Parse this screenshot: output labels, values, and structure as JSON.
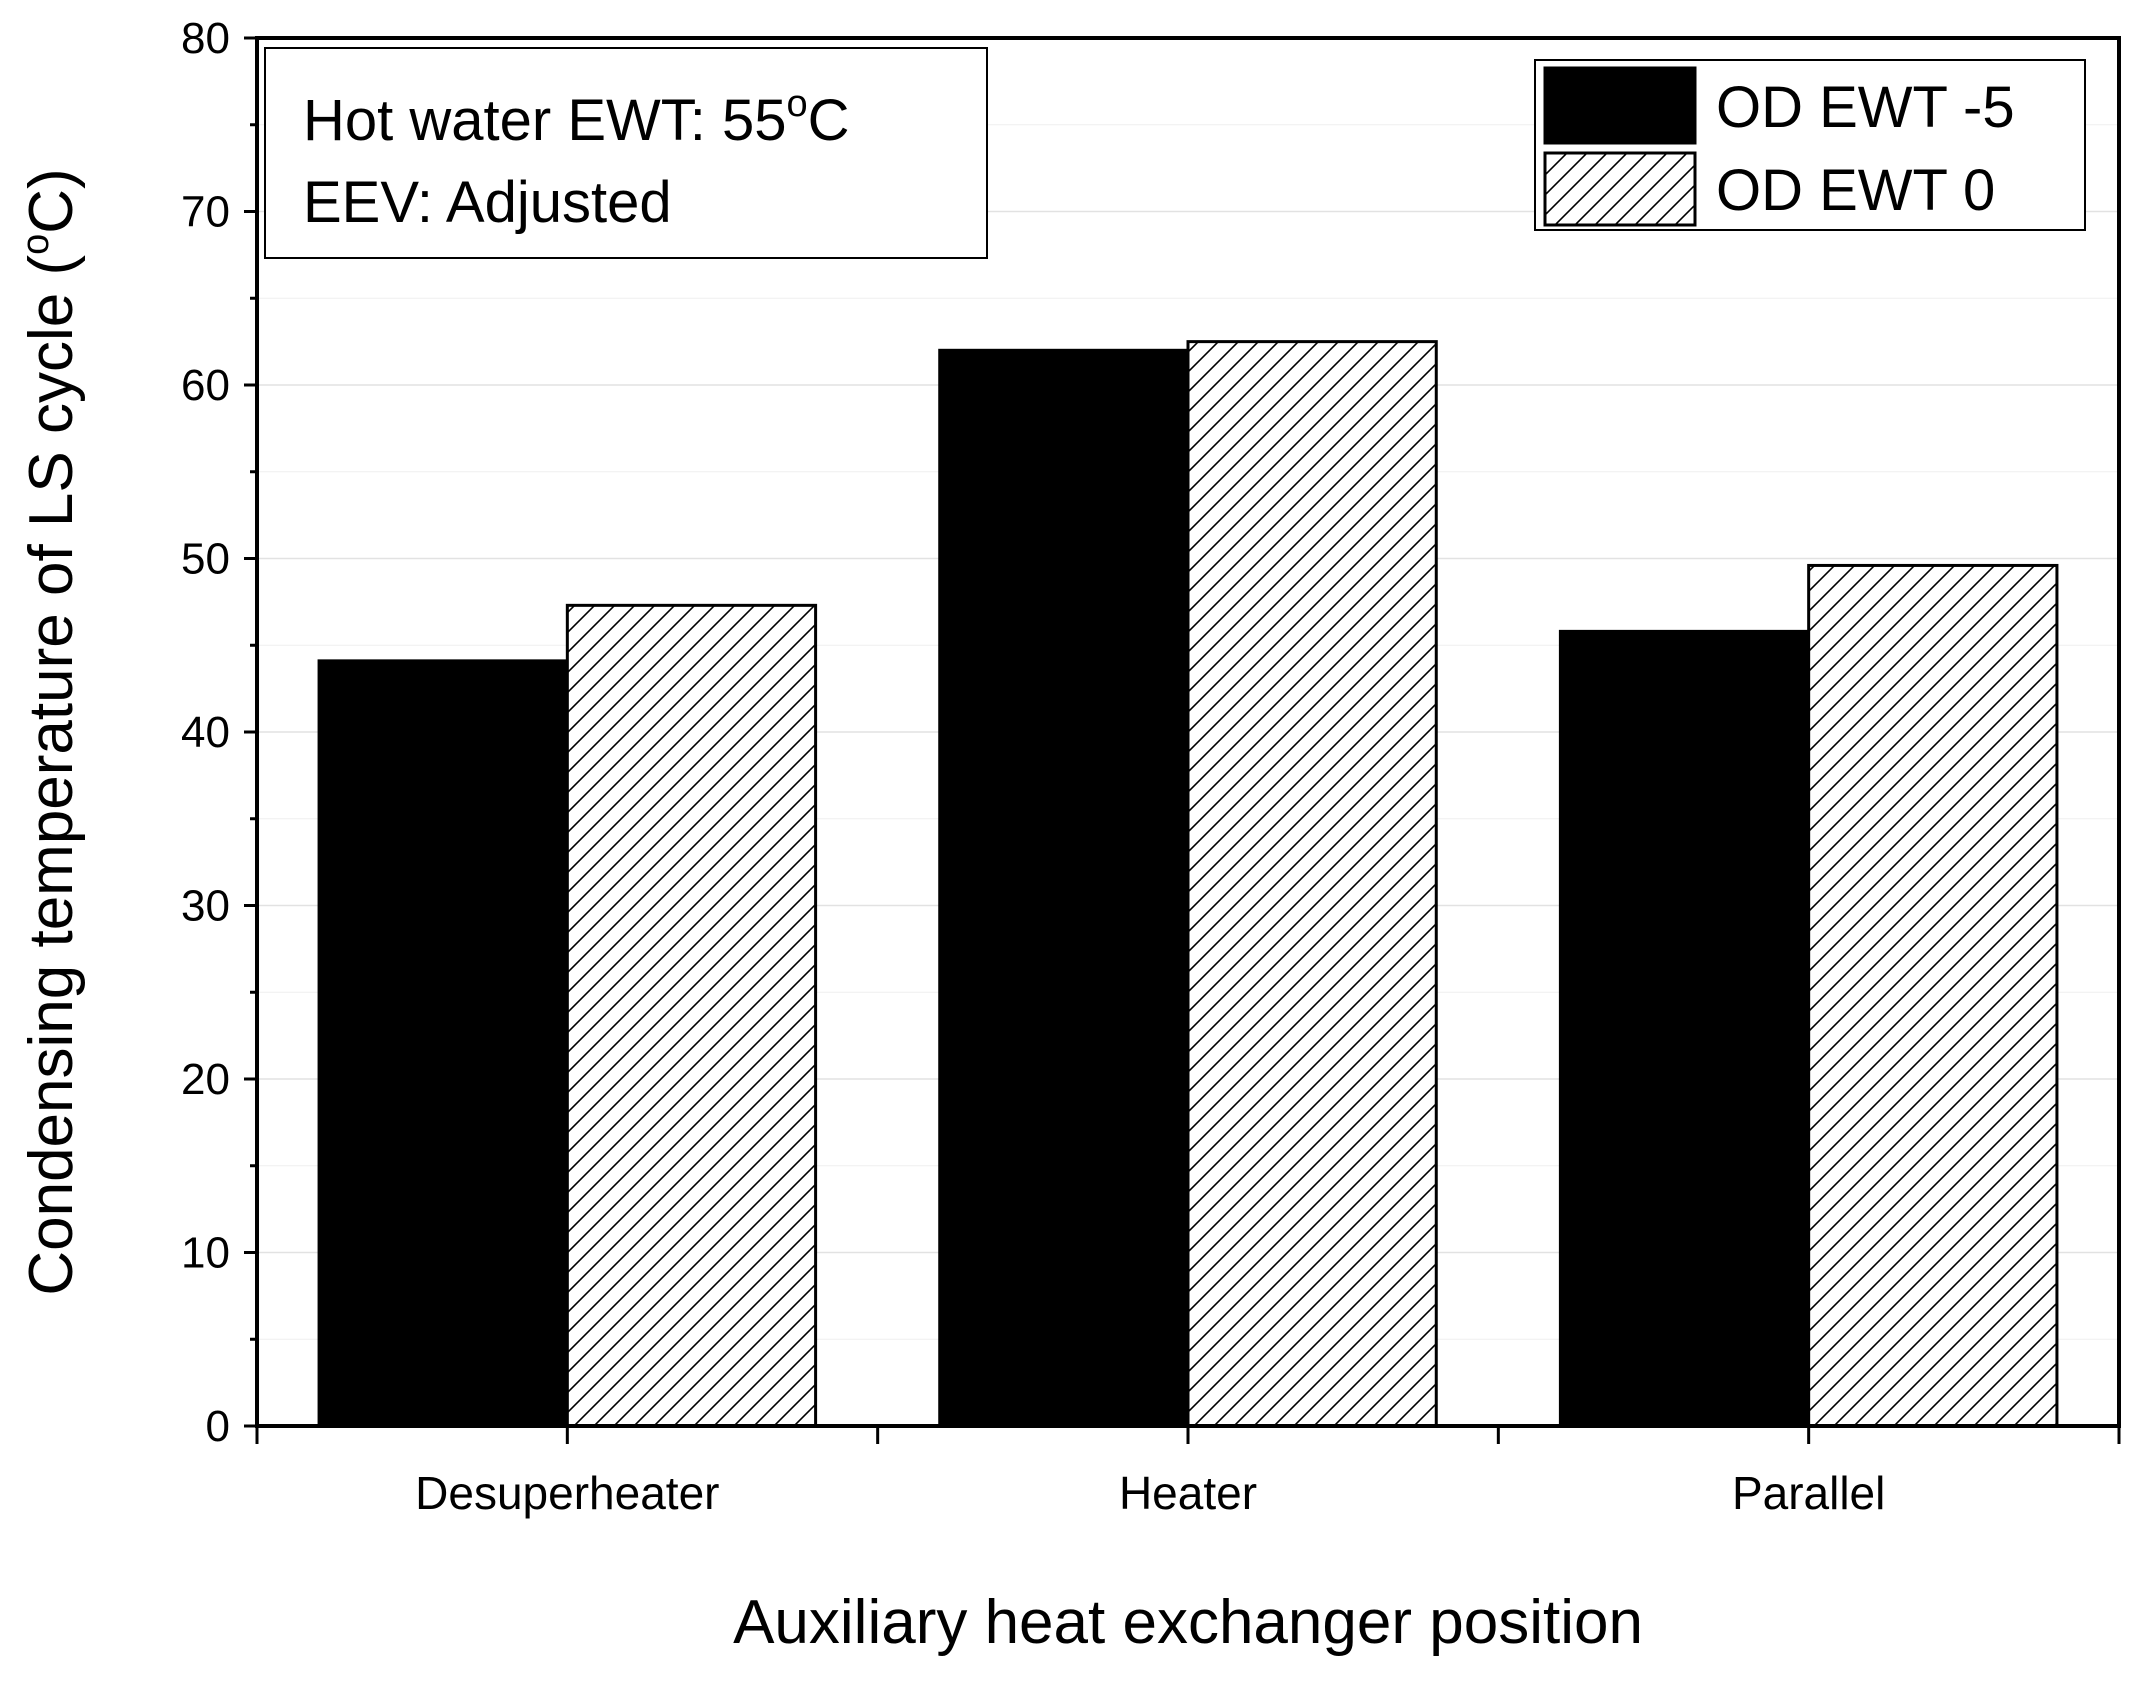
{
  "chart_data": {
    "type": "bar",
    "title": "",
    "xlabel": "Auxiliary heat exchanger position",
    "ylabel_main": "Condensing temperature of LS cycle (",
    "ylabel_degree": "o",
    "ylabel_end": "C)",
    "ylim": [
      0,
      80
    ],
    "yticks": [
      "0",
      "10",
      "20",
      "30",
      "40",
      "50",
      "60",
      "70",
      "80"
    ],
    "grid": true,
    "categories": [
      "Desuperheater",
      "Heater",
      "Parallel"
    ],
    "series": [
      {
        "name": "OD EWT -5",
        "values": [
          44.1,
          62.0,
          45.8
        ],
        "fill": "#000000"
      },
      {
        "name": "OD EWT 0",
        "values": [
          47.3,
          62.5,
          49.6
        ],
        "fill": "hatch"
      }
    ],
    "legend_position": "top-right",
    "annotation": {
      "line1_main": "Hot water EWT: 55",
      "line1_degree": "o",
      "line1_end": "C",
      "line2": "EEV: Adjusted"
    }
  }
}
